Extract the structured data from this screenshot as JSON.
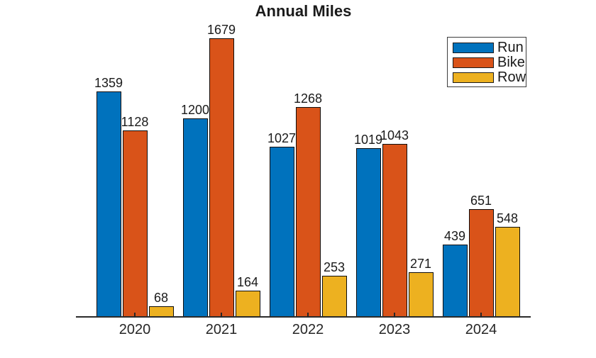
{
  "chart_data": {
    "type": "bar",
    "title": "Annual Miles",
    "xlabel": "",
    "ylabel": "",
    "categories": [
      "2020",
      "2021",
      "2022",
      "2023",
      "2024"
    ],
    "series": [
      {
        "name": "Run",
        "color": "#0072BD",
        "values": [
          1359,
          1200,
          1027,
          1019,
          439
        ]
      },
      {
        "name": "Bike",
        "color": "#D95319",
        "values": [
          1128,
          1679,
          1268,
          1043,
          651
        ]
      },
      {
        "name": "Row",
        "color": "#EDB120",
        "values": [
          68,
          164,
          253,
          271,
          548
        ]
      }
    ],
    "ylim": [
      0,
      1800
    ],
    "bar_labels_shown": true,
    "grid": false,
    "legend_position": "northeast",
    "legend_entries": [
      "Run",
      "Bike",
      "Row"
    ],
    "bar_edge_color": "#0d0d0d",
    "axis_color": "#262626",
    "value_label_color": "#1a1a1a",
    "title_color": "#1a1a1a",
    "background_color": "#ffffff"
  }
}
